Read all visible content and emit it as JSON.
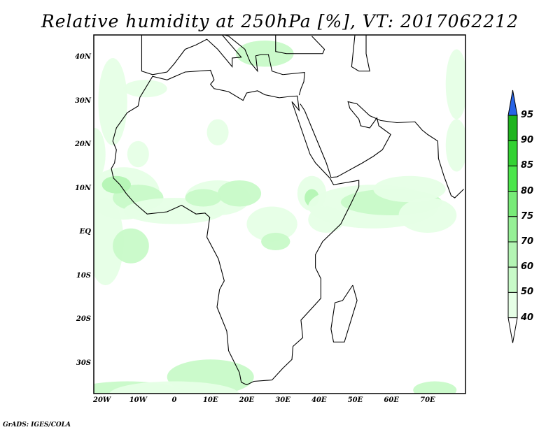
{
  "title": "Relative humidity at 250hPa [%], VT: 2017062212",
  "axes": {
    "lon_labels": [
      "20W",
      "10W",
      "0",
      "10E",
      "20E",
      "30E",
      "40E",
      "50E",
      "60E",
      "70E"
    ],
    "lon_values": [
      -20,
      -10,
      0,
      10,
      20,
      30,
      40,
      50,
      60,
      70
    ],
    "lat_labels": [
      "40N",
      "30N",
      "20N",
      "10N",
      "EQ",
      "10S",
      "20S",
      "30S"
    ],
    "lat_values": [
      40,
      30,
      20,
      10,
      0,
      -10,
      -20,
      -30
    ]
  },
  "colorbar": {
    "labels": [
      "95",
      "90",
      "85",
      "80",
      "75",
      "70",
      "60",
      "50",
      "40"
    ],
    "levels": [
      40,
      50,
      60,
      70,
      75,
      80,
      85,
      90,
      95
    ],
    "colors": [
      "#e6ffe6",
      "#c8fac8",
      "#b4f5b4",
      "#96f096",
      "#78eb78",
      "#4be64b",
      "#32d232",
      "#1eb41e"
    ],
    "over_color": "#2864e6",
    "under_color": "#ffffff"
  },
  "credit": "GrADS: IGES/COLA"
}
